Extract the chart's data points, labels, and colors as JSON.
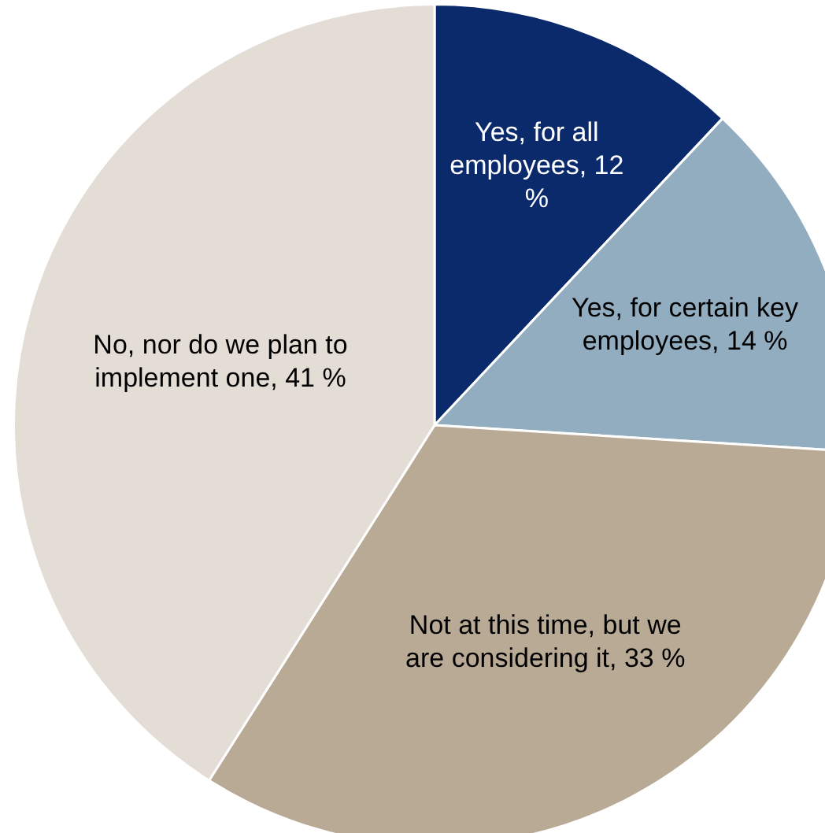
{
  "chart_data": {
    "type": "pie",
    "categories": [
      "Yes, for all employees",
      "Yes, for certain key employees",
      "Not at this time, but we are considering it",
      "No, nor do we plan to implement one"
    ],
    "values": [
      12,
      14,
      33,
      41
    ],
    "value_labels": [
      "12 %",
      "14 %",
      "33 %",
      "41 %"
    ],
    "colors": [
      "#0b2a6b",
      "#93adc0",
      "#b9aa96",
      "#e4ddd6"
    ],
    "legend": false
  }
}
